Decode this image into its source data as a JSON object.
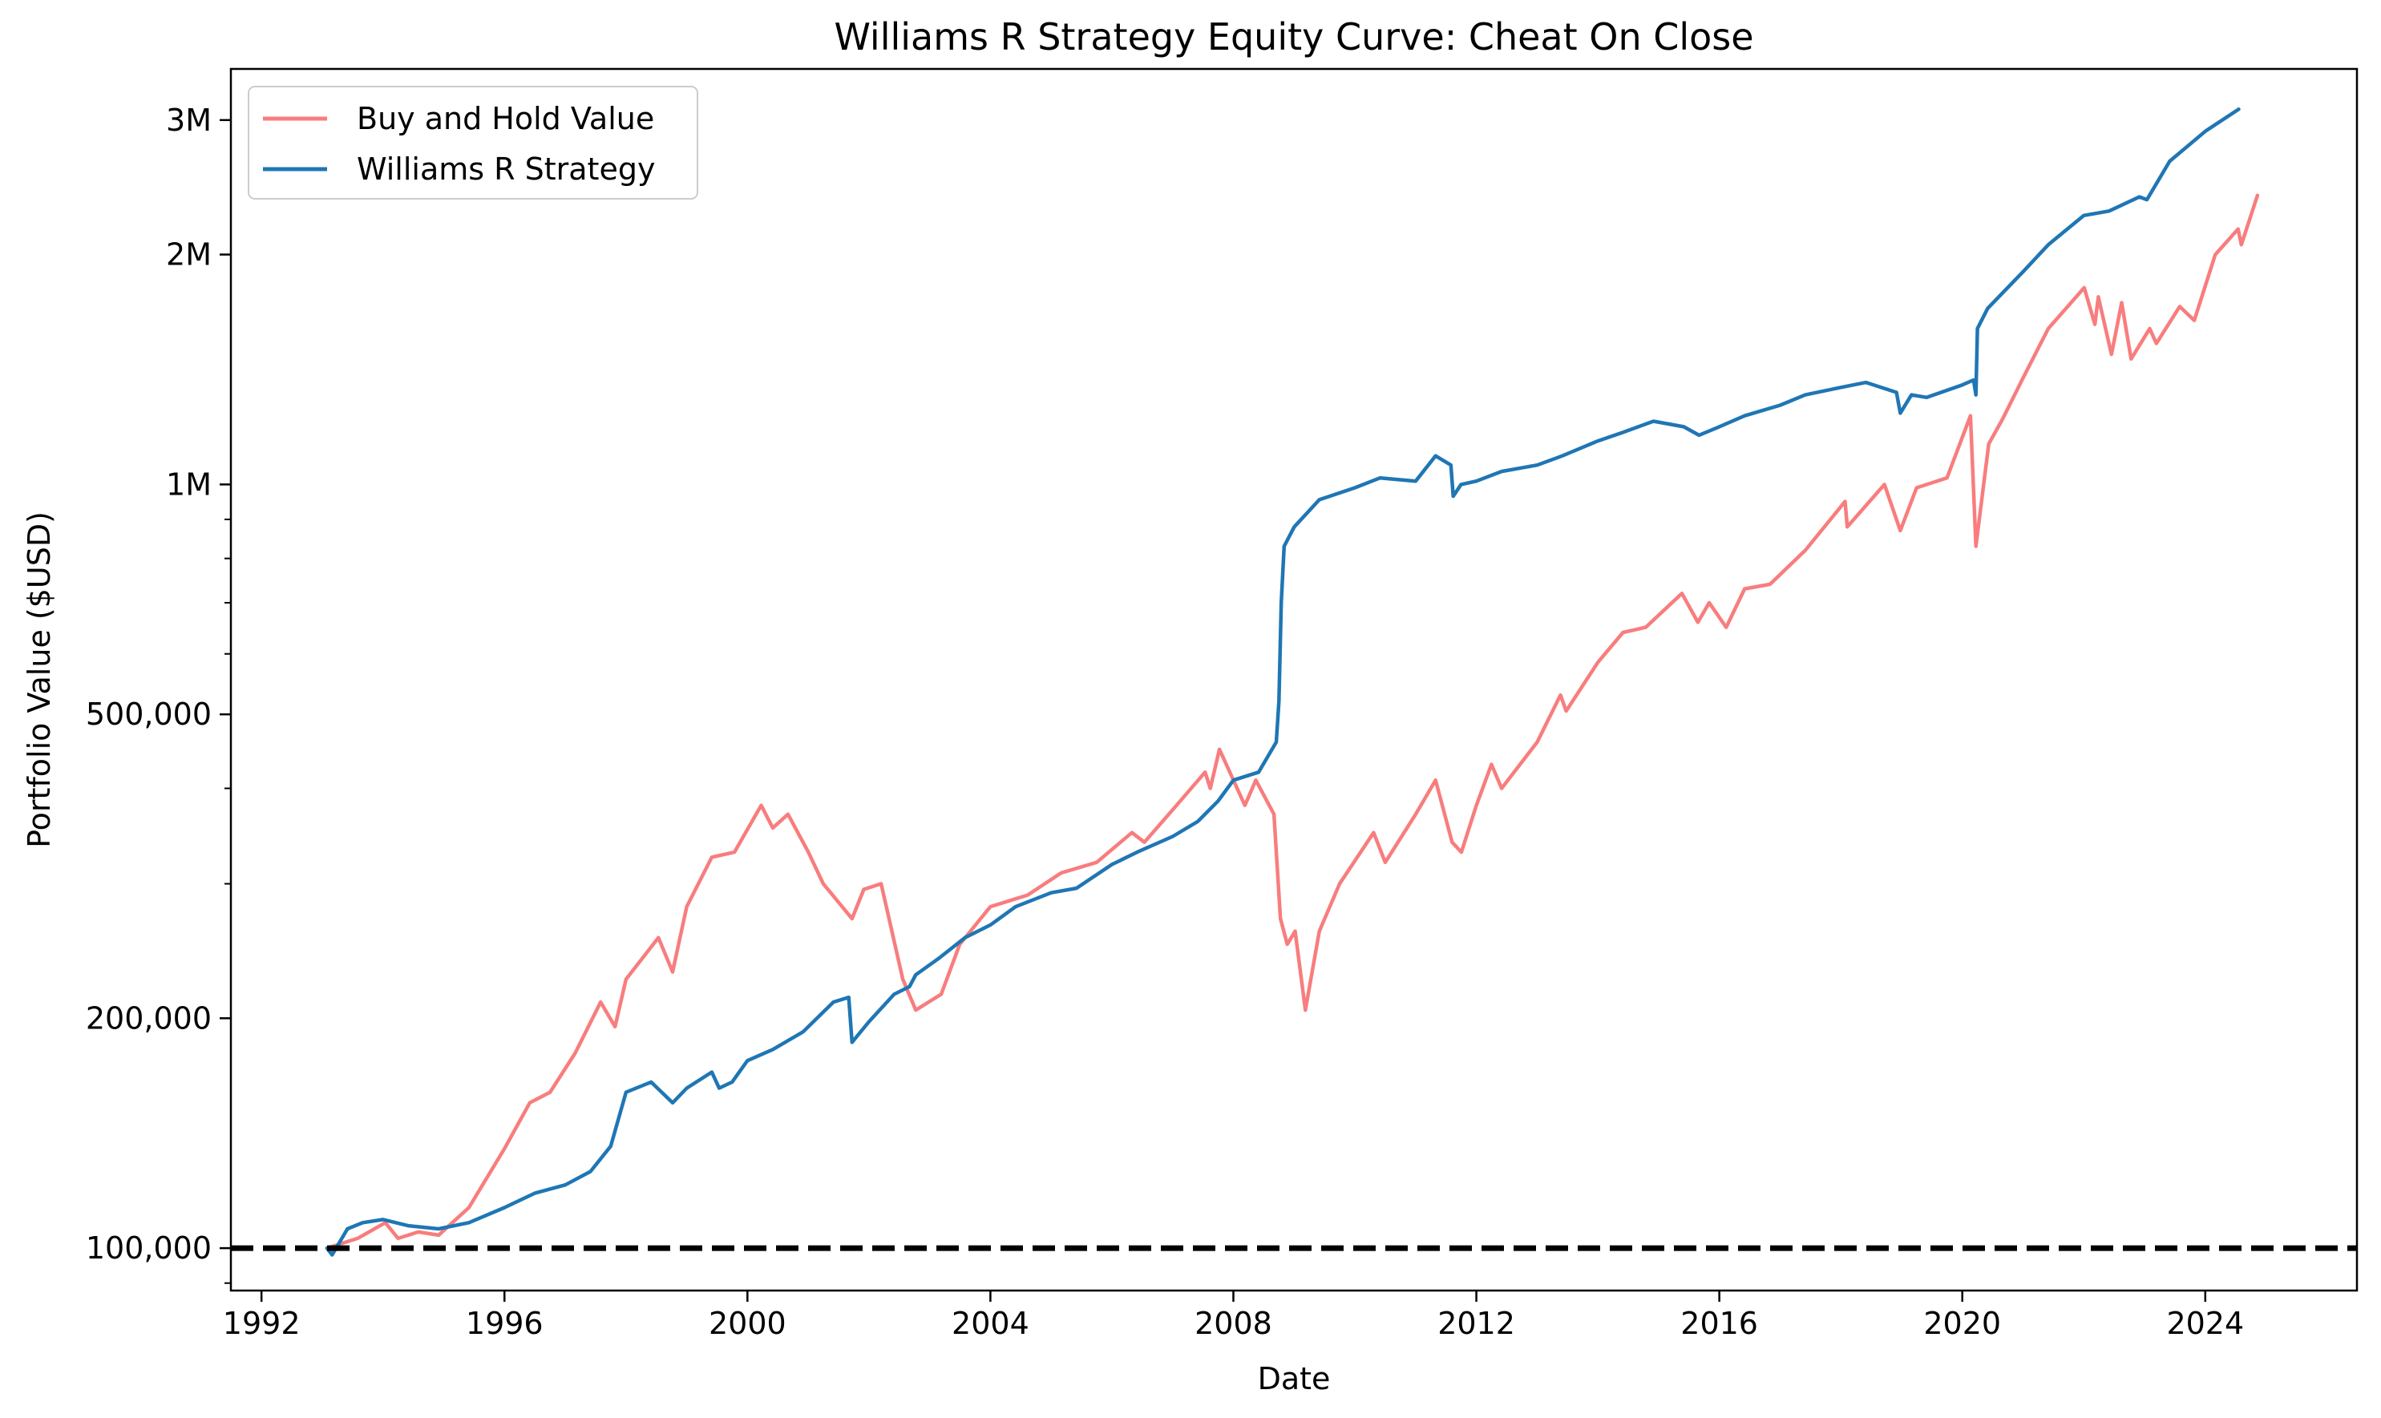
{
  "chart_data": {
    "type": "line",
    "title": "Williams R Strategy Equity Curve: Cheat On Close",
    "xlabel": "Date",
    "ylabel": "Portfolio Value ($USD)",
    "y_scale": "log",
    "xlim": [
      "1991-07-01",
      "2026-07-01"
    ],
    "ylim": [
      88000,
      3500000
    ],
    "x_ticks": [
      {
        "date": "1992-01-01",
        "label": "1992"
      },
      {
        "date": "1996-01-01",
        "label": "1996"
      },
      {
        "date": "2000-01-01",
        "label": "2000"
      },
      {
        "date": "2004-01-01",
        "label": "2004"
      },
      {
        "date": "2008-01-01",
        "label": "2008"
      },
      {
        "date": "2012-01-01",
        "label": "2012"
      },
      {
        "date": "2016-01-01",
        "label": "2016"
      },
      {
        "date": "2020-01-01",
        "label": "2020"
      },
      {
        "date": "2024-01-01",
        "label": "2024"
      }
    ],
    "y_ticks": [
      {
        "value": 100000,
        "label": "100,000"
      },
      {
        "value": 200000,
        "label": "200,000"
      },
      {
        "value": 500000,
        "label": "500,000"
      },
      {
        "value": 1000000,
        "label": "1M"
      },
      {
        "value": 2000000,
        "label": "2M"
      },
      {
        "value": 3000000,
        "label": "3M"
      }
    ],
    "y_minor_ticks": [
      90000,
      300000,
      400000,
      600000,
      700000,
      800000,
      900000
    ],
    "grid": false,
    "legend_position": "top-left",
    "series": [
      {
        "name": "Buy and Hold Value",
        "color": "#f87d7e",
        "x": [
          "1993-01-29",
          "1993-08-01",
          "1994-01-15",
          "1994-04-01",
          "1994-08-01",
          "1994-12-01",
          "1995-06-01",
          "1996-01-01",
          "1996-06-01",
          "1996-10-01",
          "1997-03-01",
          "1997-08-01",
          "1997-10-27",
          "1998-01-01",
          "1998-07-15",
          "1998-10-08",
          "1999-01-01",
          "1999-06-01",
          "1999-10-15",
          "2000-03-24",
          "2000-06-01",
          "2000-09-01",
          "2001-01-01",
          "2001-04-01",
          "2001-09-21",
          "2001-12-01",
          "2002-03-15",
          "2002-07-23",
          "2002-10-09",
          "2003-03-11",
          "2003-07-01",
          "2004-01-01",
          "2004-08-12",
          "2005-03-01",
          "2005-10-01",
          "2006-05-01",
          "2006-07-15",
          "2007-01-01",
          "2007-07-15",
          "2007-08-15",
          "2007-10-09",
          "2008-03-10",
          "2008-05-15",
          "2008-09-01",
          "2008-10-10",
          "2008-11-20",
          "2009-01-06",
          "2009-03-09",
          "2009-06-01",
          "2009-10-01",
          "2010-04-23",
          "2010-07-02",
          "2011-01-01",
          "2011-05-01",
          "2011-08-08",
          "2011-10-03",
          "2012-01-01",
          "2012-04-01",
          "2012-06-01",
          "2013-01-01",
          "2013-05-21",
          "2013-06-24",
          "2014-01-01",
          "2014-06-01",
          "2014-10-15",
          "2015-05-21",
          "2015-08-25",
          "2015-11-01",
          "2016-02-11",
          "2016-06-01",
          "2016-11-01",
          "2017-06-01",
          "2018-01-26",
          "2018-02-08",
          "2018-09-20",
          "2018-12-24",
          "2019-04-01",
          "2019-10-01",
          "2020-02-19",
          "2020-03-23",
          "2020-06-08",
          "2020-09-01",
          "2021-01-01",
          "2021-06-01",
          "2022-01-03",
          "2022-03-08",
          "2022-03-29",
          "2022-06-16",
          "2022-08-16",
          "2022-10-12",
          "2023-02-01",
          "2023-03-13",
          "2023-07-31",
          "2023-10-27",
          "2024-03-01",
          "2024-07-16",
          "2024-08-05",
          "2024-11-10"
        ],
        "values": [
          100000,
          103000,
          108000,
          103000,
          105000,
          104000,
          113000,
          135000,
          155000,
          160000,
          180000,
          210000,
          195000,
          225000,
          255000,
          230000,
          280000,
          325000,
          330000,
          380000,
          355000,
          370000,
          330000,
          300000,
          270000,
          295000,
          300000,
          225000,
          205000,
          215000,
          250000,
          280000,
          290000,
          310000,
          320000,
          350000,
          340000,
          375000,
          420000,
          400000,
          450000,
          380000,
          410000,
          370000,
          270000,
          250000,
          260000,
          205000,
          260000,
          300000,
          350000,
          320000,
          370000,
          410000,
          340000,
          330000,
          380000,
          430000,
          400000,
          460000,
          530000,
          505000,
          585000,
          640000,
          650000,
          720000,
          660000,
          700000,
          650000,
          730000,
          740000,
          820000,
          950000,
          880000,
          1000000,
          870000,
          990000,
          1020000,
          1230000,
          830000,
          1130000,
          1220000,
          1380000,
          1600000,
          1810000,
          1620000,
          1760000,
          1480000,
          1730000,
          1460000,
          1600000,
          1530000,
          1710000,
          1640000,
          2000000,
          2160000,
          2060000,
          2390000
        ]
      },
      {
        "name": "Williams R Strategy",
        "color": "#1f76b4",
        "x": [
          "1993-01-29",
          "1993-03-01",
          "1993-06-01",
          "1993-09-01",
          "1994-01-01",
          "1994-06-01",
          "1994-12-01",
          "1995-06-01",
          "1996-01-01",
          "1996-07-01",
          "1997-01-01",
          "1997-06-01",
          "1997-10-01",
          "1998-01-01",
          "1998-06-01",
          "1998-10-08",
          "1999-01-01",
          "1999-06-01",
          "1999-07-15",
          "1999-10-01",
          "2000-01-01",
          "2000-06-01",
          "2000-12-01",
          "2001-06-01",
          "2001-09-01",
          "2001-09-21",
          "2002-01-01",
          "2002-06-01",
          "2002-09-01",
          "2002-10-09",
          "2003-03-01",
          "2003-08-01",
          "2004-01-01",
          "2004-06-01",
          "2005-01-01",
          "2005-06-01",
          "2006-01-01",
          "2006-06-01",
          "2007-01-01",
          "2007-06-01",
          "2007-10-01",
          "2008-01-01",
          "2008-06-01",
          "2008-09-15",
          "2008-10-01",
          "2008-10-15",
          "2008-11-01",
          "2009-01-01",
          "2009-06-01",
          "2010-01-01",
          "2010-06-01",
          "2011-01-01",
          "2011-05-01",
          "2011-08-01",
          "2011-08-15",
          "2011-10-01",
          "2012-01-01",
          "2012-06-01",
          "2013-01-01",
          "2013-06-01",
          "2014-01-01",
          "2014-06-01",
          "2014-12-01",
          "2015-06-01",
          "2015-09-01",
          "2016-01-01",
          "2016-06-01",
          "2017-01-01",
          "2017-06-01",
          "2018-01-01",
          "2018-06-01",
          "2018-12-01",
          "2018-12-24",
          "2019-03-01",
          "2019-06-01",
          "2020-01-01",
          "2020-03-09",
          "2020-03-23",
          "2020-04-01",
          "2020-06-01",
          "2021-01-01",
          "2021-06-01",
          "2022-01-01",
          "2022-06-01",
          "2022-12-01",
          "2023-01-15",
          "2023-06-01",
          "2024-01-01",
          "2024-07-20"
        ],
        "values": [
          100000,
          98000,
          106000,
          108000,
          109000,
          107000,
          106000,
          108000,
          113000,
          118000,
          121000,
          126000,
          136000,
          160000,
          165000,
          155000,
          162000,
          170000,
          162000,
          165000,
          176000,
          182000,
          192000,
          210000,
          213000,
          186000,
          198000,
          215000,
          220000,
          228000,
          240000,
          255000,
          265000,
          280000,
          292000,
          296000,
          318000,
          330000,
          346000,
          362000,
          385000,
          410000,
          420000,
          460000,
          520000,
          700000,
          830000,
          880000,
          955000,
          990000,
          1020000,
          1010000,
          1090000,
          1060000,
          965000,
          1000000,
          1010000,
          1040000,
          1060000,
          1090000,
          1140000,
          1170000,
          1210000,
          1190000,
          1160000,
          1190000,
          1230000,
          1270000,
          1310000,
          1340000,
          1360000,
          1320000,
          1240000,
          1310000,
          1300000,
          1350000,
          1370000,
          1310000,
          1600000,
          1700000,
          1900000,
          2060000,
          2250000,
          2280000,
          2380000,
          2360000,
          2650000,
          2900000,
          3100000
        ]
      }
    ],
    "reference_line": {
      "value": 100000,
      "style": "dashed",
      "color": "#000000"
    }
  }
}
